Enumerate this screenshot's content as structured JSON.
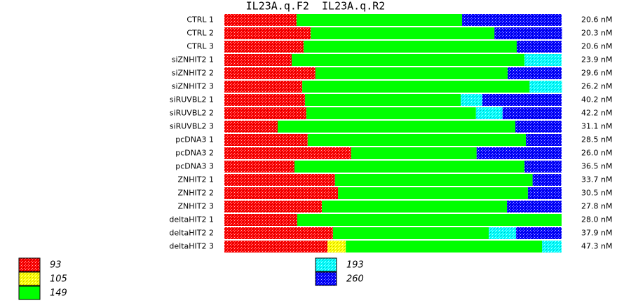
{
  "chart_data": {
    "type": "stacked-barh",
    "title": "IL23A.q.F2  IL23A.q.R2",
    "categories": [
      "CTRL 1",
      "CTRL 2",
      "CTRL 3",
      "siZNHIT2 1",
      "siZNHIT2 2",
      "siZNHIT2 3",
      "siRUVBL2 1",
      "siRUVBL2 2",
      "siRUVBL2 3",
      "pcDNA3 1",
      "pcDNA3 2",
      "pcDNA3 3",
      "ZNHIT2 1",
      "ZNHIT2 2",
      "ZNHIT2 3",
      "deltaHIT2 1",
      "deltaHIT2 2",
      "deltaHIT2 3"
    ],
    "concentrations": [
      "20.6 nM",
      "20.3 nM",
      "20.6 nM",
      "23.9 nM",
      "29.6 nM",
      "26.2 nM",
      "40.2 nM",
      "42.2 nM",
      "31.1 nM",
      "28.5 nM",
      "26.0 nM",
      "36.5 nM",
      "33.7 nM",
      "30.5 nM",
      "27.8 nM",
      "28.0 nM",
      "37.9 nM",
      "47.3 nM"
    ],
    "xlim": [
      0,
      100
    ],
    "series": [
      {
        "name": "93",
        "color": "#ff0000",
        "hatched": true,
        "values": [
          21.4,
          25.6,
          23.5,
          20.0,
          27.0,
          23.1,
          23.9,
          24.3,
          15.8,
          24.7,
          37.6,
          20.8,
          32.8,
          33.7,
          28.9,
          21.6,
          32.2,
          30.6
        ]
      },
      {
        "name": "105",
        "color": "#ffff00",
        "hatched": true,
        "values": [
          0,
          0,
          0,
          0,
          0,
          0,
          0,
          0,
          0,
          0,
          0,
          0,
          0,
          0,
          0,
          0,
          0,
          5.4
        ]
      },
      {
        "name": "149",
        "color": "#00ff00",
        "hatched": false,
        "values": [
          49.1,
          54.5,
          63.2,
          69.0,
          57.0,
          67.4,
          46.2,
          50.3,
          70.5,
          64.7,
          37.2,
          68.2,
          58.6,
          56.3,
          54.9,
          78.4,
          46.2,
          58.2
        ]
      },
      {
        "name": "193",
        "color": "#00ffff",
        "hatched": true,
        "values": [
          0,
          0,
          0,
          11.0,
          0,
          9.6,
          6.4,
          7.9,
          0,
          0,
          0,
          0,
          0,
          0,
          0,
          0,
          8.1,
          5.8
        ]
      },
      {
        "name": "260",
        "color": "#0000ff",
        "hatched": true,
        "values": [
          29.5,
          20.0,
          13.3,
          0,
          16.0,
          0,
          23.5,
          17.5,
          13.7,
          10.6,
          25.2,
          11.0,
          8.5,
          10.0,
          16.2,
          0,
          13.5,
          0
        ]
      }
    ]
  }
}
